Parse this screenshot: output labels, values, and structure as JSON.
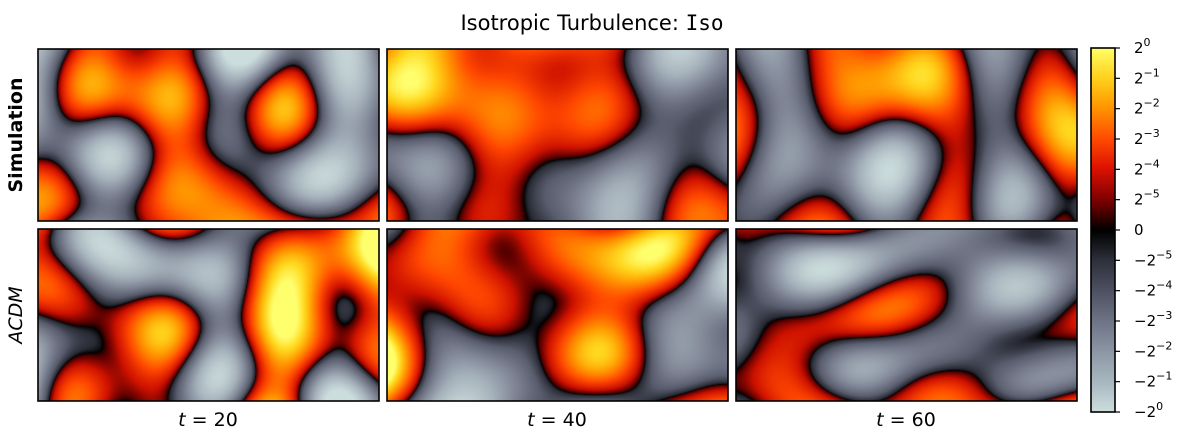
{
  "chart_data": {
    "type": "heatmap",
    "title": "Isotropic Turbulence: ",
    "title_code": "Iso",
    "rows": [
      {
        "label": "Simulation",
        "style": "bold"
      },
      {
        "label": "ACDM",
        "style": "italic"
      }
    ],
    "columns": [
      {
        "var": "t",
        "eq": " = ",
        "value": "20"
      },
      {
        "var": "t",
        "eq": " = ",
        "value": "40"
      },
      {
        "var": "t",
        "eq": " = ",
        "value": "60"
      }
    ],
    "colorbar": {
      "scale": "symmetric-log2",
      "range": [
        -1,
        1
      ],
      "ticks": [
        {
          "base": "2",
          "exp": "0"
        },
        {
          "base": "2",
          "exp": "−1"
        },
        {
          "base": "2",
          "exp": "−2"
        },
        {
          "base": "2",
          "exp": "−3"
        },
        {
          "base": "2",
          "exp": "−4"
        },
        {
          "base": "2",
          "exp": "−5"
        },
        {
          "base": "0",
          "exp": ""
        },
        {
          "base": "−2",
          "exp": "−5"
        },
        {
          "base": "−2",
          "exp": "−4"
        },
        {
          "base": "−2",
          "exp": "−3"
        },
        {
          "base": "−2",
          "exp": "−2"
        },
        {
          "base": "−2",
          "exp": "−1"
        },
        {
          "base": "−2",
          "exp": "0"
        }
      ],
      "colors": {
        "max": "#ffff66",
        "high": "#ff9900",
        "mid_pos": "#dd1100",
        "near_zero_pos": "#550000",
        "zero": "#000000",
        "near_zero_neg": "#3a3d4a",
        "mid_neg": "#6e7385",
        "low_neg": "#a4b0ba",
        "min": "#ccdddd"
      }
    }
  }
}
